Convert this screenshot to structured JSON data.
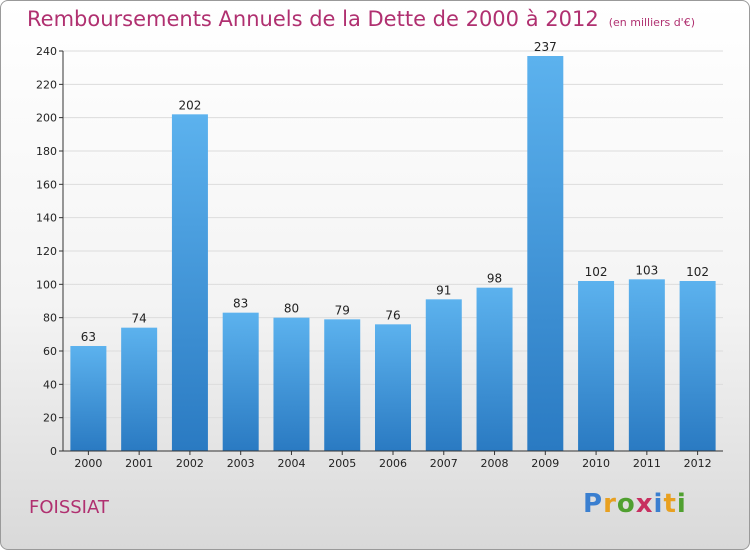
{
  "header": {
    "title": "Remboursements Annuels de la Dette de 2000 à 2012",
    "unit": "(en milliers d'€)"
  },
  "footer": {
    "city": "FOISSIAT",
    "logo_letters": [
      "P",
      "r",
      "o",
      "x",
      "i",
      "t",
      "i"
    ],
    "logo_colors": [
      "#3a7fd0",
      "#e8a020",
      "#50a030",
      "#c83060",
      "#3a7fd0",
      "#e8a020",
      "#50a030"
    ]
  },
  "colors": {
    "title": "#b03070",
    "bar_top": "#5cb2ee",
    "bar_bottom": "#2a7ac2",
    "grid": "#dcdcdc",
    "axis": "#333333"
  },
  "chart_data": {
    "type": "bar",
    "categories": [
      "2000",
      "2001",
      "2002",
      "2003",
      "2004",
      "2005",
      "2006",
      "2007",
      "2008",
      "2009",
      "2010",
      "2011",
      "2012"
    ],
    "values": [
      63,
      74,
      202,
      83,
      80,
      79,
      76,
      91,
      98,
      237,
      102,
      103,
      102
    ],
    "ylim": [
      0,
      240
    ],
    "yticks": [
      0,
      20,
      40,
      60,
      80,
      100,
      120,
      140,
      160,
      180,
      200,
      220,
      240
    ],
    "grid": true,
    "data_labels": true
  }
}
